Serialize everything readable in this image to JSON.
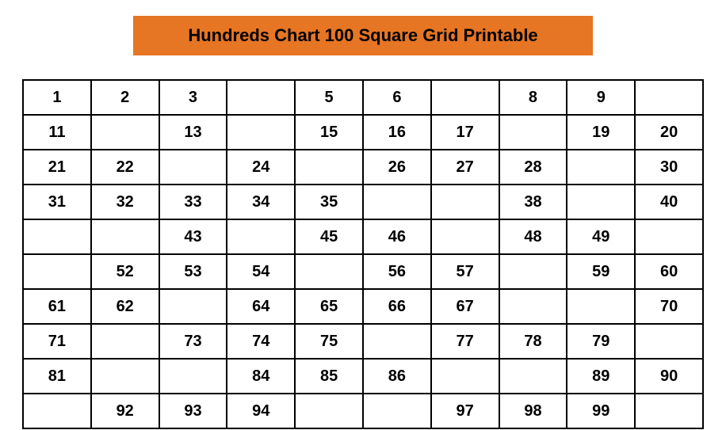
{
  "title": "Hundreds Chart 100 Square Grid Printable",
  "title_bg_color": "#e67524",
  "title_text_color": "#000000",
  "title_fontsize": 22,
  "cell_fontsize": 20,
  "cell_font_weight": "bold",
  "border_color": "#000000",
  "border_width": 2,
  "background_color": "#ffffff",
  "grid": {
    "type": "table",
    "columns": 10,
    "rows": [
      [
        "1",
        "2",
        "3",
        "",
        "5",
        "6",
        "",
        "8",
        "9",
        ""
      ],
      [
        "11",
        "",
        "13",
        "",
        "15",
        "16",
        "17",
        "",
        "19",
        "20"
      ],
      [
        "21",
        "22",
        "",
        "24",
        "",
        "26",
        "27",
        "28",
        "",
        "30"
      ],
      [
        "31",
        "32",
        "33",
        "34",
        "35",
        "",
        "",
        "38",
        "",
        "40"
      ],
      [
        "",
        "",
        "43",
        "",
        "45",
        "46",
        "",
        "48",
        "49",
        ""
      ],
      [
        "",
        "52",
        "53",
        "54",
        "",
        "56",
        "57",
        "",
        "59",
        "60"
      ],
      [
        "61",
        "62",
        "",
        "64",
        "65",
        "66",
        "67",
        "",
        "",
        "70"
      ],
      [
        "71",
        "",
        "73",
        "74",
        "75",
        "",
        "77",
        "78",
        "79",
        ""
      ],
      [
        "81",
        "",
        "",
        "84",
        "85",
        "86",
        "",
        "",
        "89",
        "90"
      ],
      [
        "",
        "92",
        "93",
        "94",
        "",
        "",
        "97",
        "98",
        "99",
        ""
      ]
    ]
  }
}
